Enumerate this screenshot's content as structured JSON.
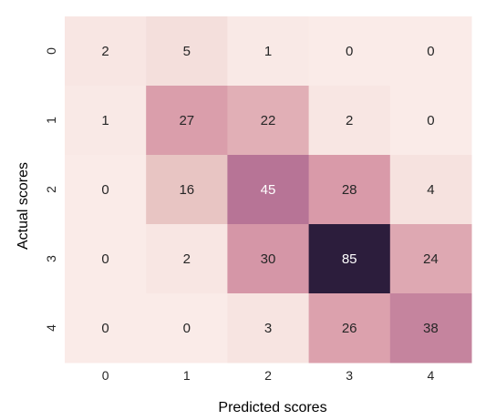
{
  "chart_data": {
    "type": "heatmap",
    "title": "",
    "xlabel": "Predicted scores",
    "ylabel": "Actual scores",
    "x_categories": [
      "0",
      "1",
      "2",
      "3",
      "4"
    ],
    "y_categories": [
      "0",
      "1",
      "2",
      "3",
      "4"
    ],
    "values": [
      [
        2,
        5,
        1,
        0,
        0
      ],
      [
        1,
        27,
        22,
        2,
        0
      ],
      [
        0,
        16,
        45,
        28,
        4
      ],
      [
        0,
        2,
        30,
        85,
        24
      ],
      [
        0,
        0,
        3,
        26,
        38
      ]
    ],
    "value_range": [
      0,
      85
    ],
    "colormap_low": "#faebe8",
    "colormap_mid": "#d99aa9",
    "colormap_high": "#2c1d3c",
    "colorbar": false,
    "grid": false
  }
}
